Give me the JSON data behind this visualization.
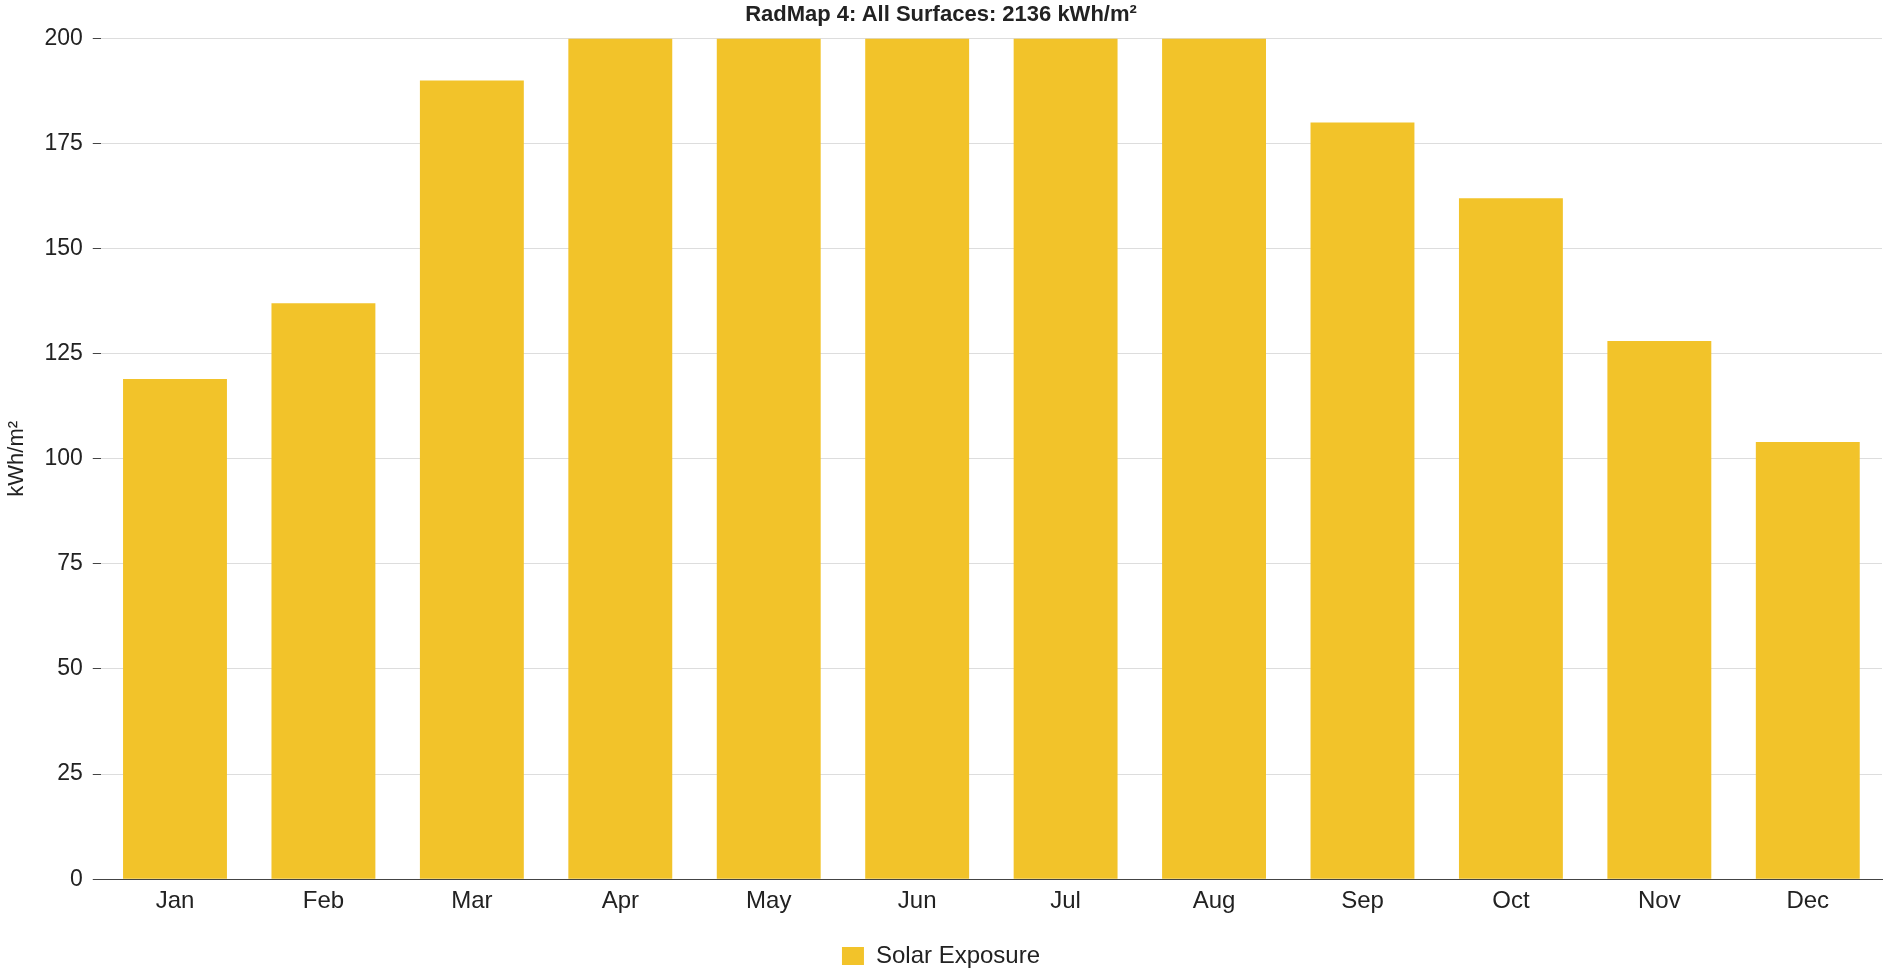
{
  "chart_data": {
    "type": "bar",
    "title": "RadMap 4: All Surfaces: 2136 kWh/m²",
    "ylabel": "kWh/m²",
    "categories": [
      "Jan",
      "Feb",
      "Mar",
      "Apr",
      "May",
      "Jun",
      "Jul",
      "Aug",
      "Sep",
      "Oct",
      "Nov",
      "Dec"
    ],
    "series": [
      {
        "name": "Solar Exposure",
        "color": "#f2c32a",
        "values": [
          119,
          137,
          190,
          200,
          200,
          200,
          200,
          200,
          180,
          162,
          128,
          104
        ]
      }
    ],
    "ylim": [
      0,
      200
    ],
    "yticks": [
      0,
      25,
      50,
      75,
      100,
      125,
      150,
      175,
      200
    ],
    "grid": "y",
    "legend": "bottom"
  }
}
